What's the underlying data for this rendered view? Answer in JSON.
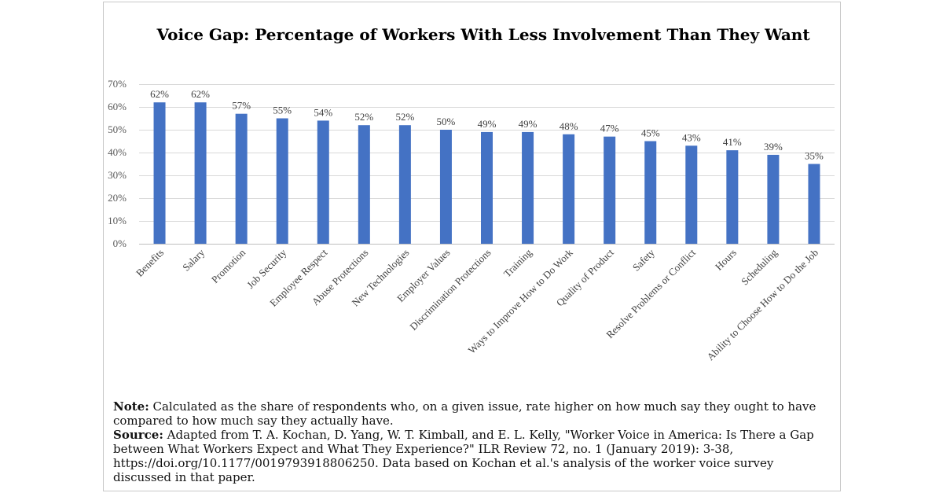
{
  "chart_data": {
    "type": "bar",
    "title": "Voice Gap: Percentage of Workers With Less Involvement Than They Want",
    "categories": [
      "Benefits",
      "Salary",
      "Promotion",
      "Job Security",
      "Employee Respect",
      "Abuse Protections",
      "New Technologies",
      "Employer Values",
      "Discrimination Protections",
      "Training",
      "Ways to Improve How to Do Work",
      "Quality of Product",
      "Safety",
      "Resolve Problems or Conflict",
      "Hours",
      "Scheduling",
      "Ability to Choose How to Do the Job"
    ],
    "values": [
      62,
      62,
      57,
      55,
      54,
      52,
      52,
      50,
      49,
      49,
      48,
      47,
      45,
      43,
      41,
      39,
      35
    ],
    "value_labels": [
      "62%",
      "62%",
      "57%",
      "55%",
      "54%",
      "52%",
      "52%",
      "50%",
      "49%",
      "49%",
      "48%",
      "47%",
      "45%",
      "43%",
      "41%",
      "39%",
      "35%"
    ],
    "y_ticks": [
      0,
      10,
      20,
      30,
      40,
      50,
      60,
      70
    ],
    "y_tick_labels": [
      "0%",
      "10%",
      "20%",
      "30%",
      "40%",
      "50%",
      "60%",
      "70%"
    ],
    "ylim": [
      0,
      70
    ],
    "grid": true,
    "legend": "none",
    "bar_color": "#4472C4"
  },
  "notes": {
    "note_label": "Note:",
    "note_text": "Calculated as the share of respondents who, on a given issue, rate higher on how much say they ought to have compared to how much say they actually have.",
    "source_label": "Source:",
    "source_text": "Adapted from T. A. Kochan, D. Yang, W. T. Kimball, and E. L. Kelly, \"Worker Voice in America: Is There a Gap between What Workers Expect and What They Experience?\" ILR Review 72, no. 1 (January 2019): 3-38, https://doi.org/10.1177/0019793918806250. Data based on Kochan et al.'s analysis of the worker voice survey discussed in that paper."
  }
}
